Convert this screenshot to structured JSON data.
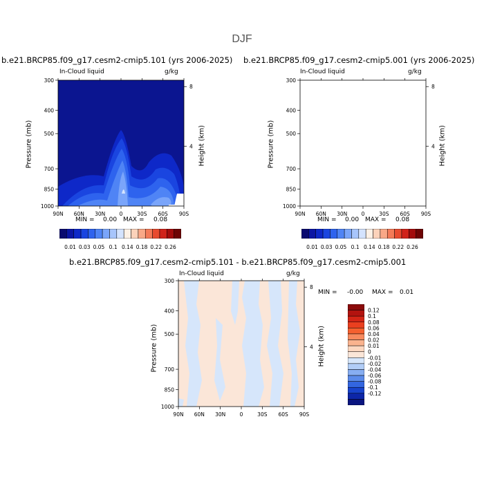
{
  "suptitle": "DJF",
  "chart_data": [
    {
      "type": "heatmap",
      "title": "b.e21.BRCP85.f09_g17.cesm2-cmip5.101 (yrs 2006-2025)",
      "variable": "In-Cloud liquid",
      "units": "g/kg",
      "xlabel": "",
      "ylabel": "Pressure (mb)",
      "y2label": "Height (km)",
      "x_ticks": [
        "90N",
        "60N",
        "30N",
        "0",
        "30S",
        "60S",
        "90S"
      ],
      "y_ticks": [
        300,
        400,
        500,
        700,
        850,
        1000
      ],
      "y2_ticks": [
        8,
        4
      ],
      "ylim": [
        1000,
        300
      ],
      "y_scale": "log",
      "min_label": "MIN =",
      "min_value": "0.00",
      "max_label": "MAX =",
      "max_value": "0.08",
      "colorbar_labels": [
        "0.01",
        "0.03",
        "0.05",
        "0.1",
        "0.14",
        "0.18",
        "0.22",
        "0.26"
      ],
      "colorbar_colors": [
        "#0a0a70",
        "#0b15a4",
        "#0e28c8",
        "#1a45e0",
        "#2e63ee",
        "#4f84f5",
        "#7aa5fa",
        "#a7c5fc",
        "#d4e3fe",
        "#fdf1e6",
        "#fcd2ba",
        "#f9a887",
        "#f47a58",
        "#e84a2f",
        "#d0231a",
        "#a30c0c",
        "#6e0404"
      ]
    },
    {
      "type": "heatmap",
      "title": "b.e21.BRCP85.f09_g17.cesm2-cmip5.001 (yrs 2006-2025)",
      "variable": "In-Cloud liquid",
      "units": "g/kg",
      "xlabel": "",
      "ylabel": "Pressure (mb)",
      "y2label": "Height (km)",
      "x_ticks": [
        "90N",
        "60N",
        "30N",
        "0",
        "30S",
        "60S",
        "90S"
      ],
      "y_ticks": [
        300,
        400,
        500,
        700,
        850,
        1000
      ],
      "y2_ticks": [
        8,
        4
      ],
      "ylim": [
        1000,
        300
      ],
      "y_scale": "log",
      "min_label": "MIN =",
      "min_value": "0.00",
      "max_label": "MAX =",
      "max_value": "0.08",
      "colorbar_labels": [
        "0.01",
        "0.03",
        "0.05",
        "0.1",
        "0.14",
        "0.18",
        "0.22",
        "0.26"
      ],
      "colorbar_colors": [
        "#0a0a70",
        "#0b15a4",
        "#0e28c8",
        "#1a45e0",
        "#2e63ee",
        "#4f84f5",
        "#7aa5fa",
        "#a7c5fc",
        "#d4e3fe",
        "#fdf1e6",
        "#fcd2ba",
        "#f9a887",
        "#f47a58",
        "#e84a2f",
        "#d0231a",
        "#a30c0c",
        "#6e0404"
      ]
    },
    {
      "type": "heatmap",
      "title": "b.e21.BRCP85.f09_g17.cesm2-cmip5.101 - b.e21.BRCP85.f09_g17.cesm2-cmip5.001",
      "variable": "In-Cloud liquid",
      "units": "g/kg",
      "xlabel": "",
      "ylabel": "Pressure (mb)",
      "y2label": "Height (km)",
      "x_ticks": [
        "90N",
        "60N",
        "30N",
        "0",
        "30S",
        "60S",
        "90S"
      ],
      "y_ticks": [
        300,
        400,
        500,
        700,
        850,
        1000
      ],
      "y2_ticks": [
        8,
        4
      ],
      "ylim": [
        1000,
        300
      ],
      "y_scale": "log",
      "min_label": "MIN =",
      "min_value": "-0.00",
      "max_label": "MAX =",
      "max_value": "0.01",
      "colorbar_labels": [
        "0.12",
        "0.1",
        "0.08",
        "0.06",
        "0.04",
        "0.02",
        "0.01",
        "0",
        "-0.01",
        "-0.02",
        "-0.04",
        "-0.06",
        "-0.08",
        "-0.1",
        "-0.12"
      ],
      "colorbar_colors": [
        "#8b0b0b",
        "#b3130f",
        "#d42516",
        "#ea3f1f",
        "#f5602f",
        "#f88a5e",
        "#fab38e",
        "#fcd7c0",
        "#fbe6d8",
        "#d6e6fb",
        "#b1cdf7",
        "#87aef2",
        "#5b8bea",
        "#3366e0",
        "#1843cc",
        "#0d26a8",
        "#0a1580"
      ]
    }
  ]
}
